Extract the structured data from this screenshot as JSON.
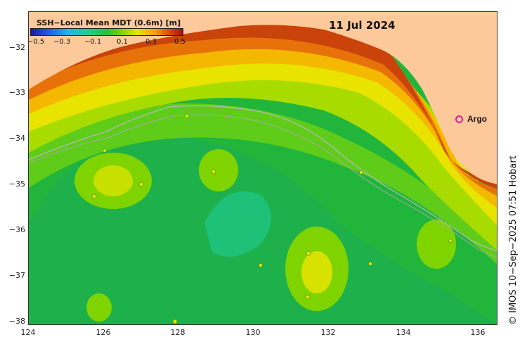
{
  "map": {
    "date": "11 Jul 2024",
    "legend": {
      "title": "SSH−Local Mean MDT (0.6m) [m]",
      "ticks": [
        "−0.5",
        "−0.3",
        "−0.1",
        "0.1",
        "0.3",
        "0.5"
      ]
    },
    "lat_ticks": [
      "−32",
      "−33",
      "−34",
      "−35",
      "−36",
      "−37",
      "−38"
    ],
    "lon_ticks": [
      "124",
      "126",
      "128",
      "130",
      "132",
      "134",
      "136"
    ],
    "argo_label": "Argo",
    "argo_color": "#e0199a",
    "land_color": "#fdc99a",
    "credit": "© IMOS 10−Sep−2025 07:51 Hobart"
  }
}
